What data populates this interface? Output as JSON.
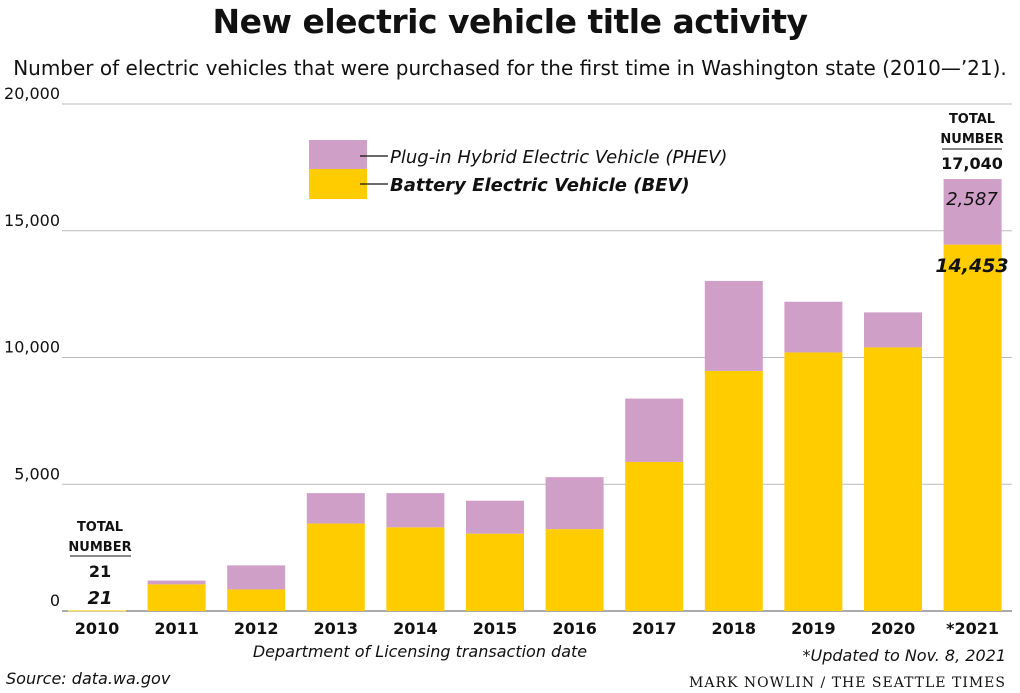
{
  "chart_data": {
    "type": "bar",
    "stacked": true,
    "title": "New electric vehicle title activity",
    "subtitle": "Number of electric vehicles that were purchased for the first time in Washington state (2010—’21).",
    "xlabel": "Department of Licensing transaction date",
    "ylabel": "",
    "ylim": [
      0,
      20000
    ],
    "yticks": [
      0,
      5000,
      10000,
      15000,
      20000
    ],
    "ytick_labels": [
      "0",
      "5,000",
      "10,000",
      "15,000",
      "20,000"
    ],
    "grid": true,
    "categories": [
      "2010",
      "2011",
      "2012",
      "2013",
      "2014",
      "2015",
      "2016",
      "2017",
      "2018",
      "2019",
      "2020",
      "*2021"
    ],
    "series": [
      {
        "name": "Battery Electric Vehicle (BEV)",
        "color": "#FFCC00",
        "values": [
          21,
          1050,
          850,
          3450,
          3300,
          3050,
          3230,
          5880,
          9470,
          10200,
          10400,
          14453
        ]
      },
      {
        "name": "Plug-in Hybrid Electric Vehicle (PHEV)",
        "color": "#D09FC8",
        "values": [
          0,
          150,
          950,
          1200,
          1350,
          1300,
          2050,
          2500,
          3550,
          2000,
          1380,
          2587
        ]
      }
    ],
    "legend_location": "top-left",
    "annotations": [
      {
        "category": "2010",
        "heading": "TOTAL NUMBER",
        "total": "21",
        "bev_label": "21"
      },
      {
        "category": "*2021",
        "heading": "TOTAL NUMBER",
        "total": "17,040",
        "bev_label": "14,453",
        "phev_label": "2,587"
      }
    ]
  },
  "source": "Source: data.wa.gov",
  "note": "*Updated to Nov. 8, 2021",
  "credit": "MARK NOWLIN / THE SEATTLE TIMES",
  "colors": {
    "bev": "#FFCC00",
    "phev": "#D09FC8",
    "grid": "#bbbbbb"
  }
}
